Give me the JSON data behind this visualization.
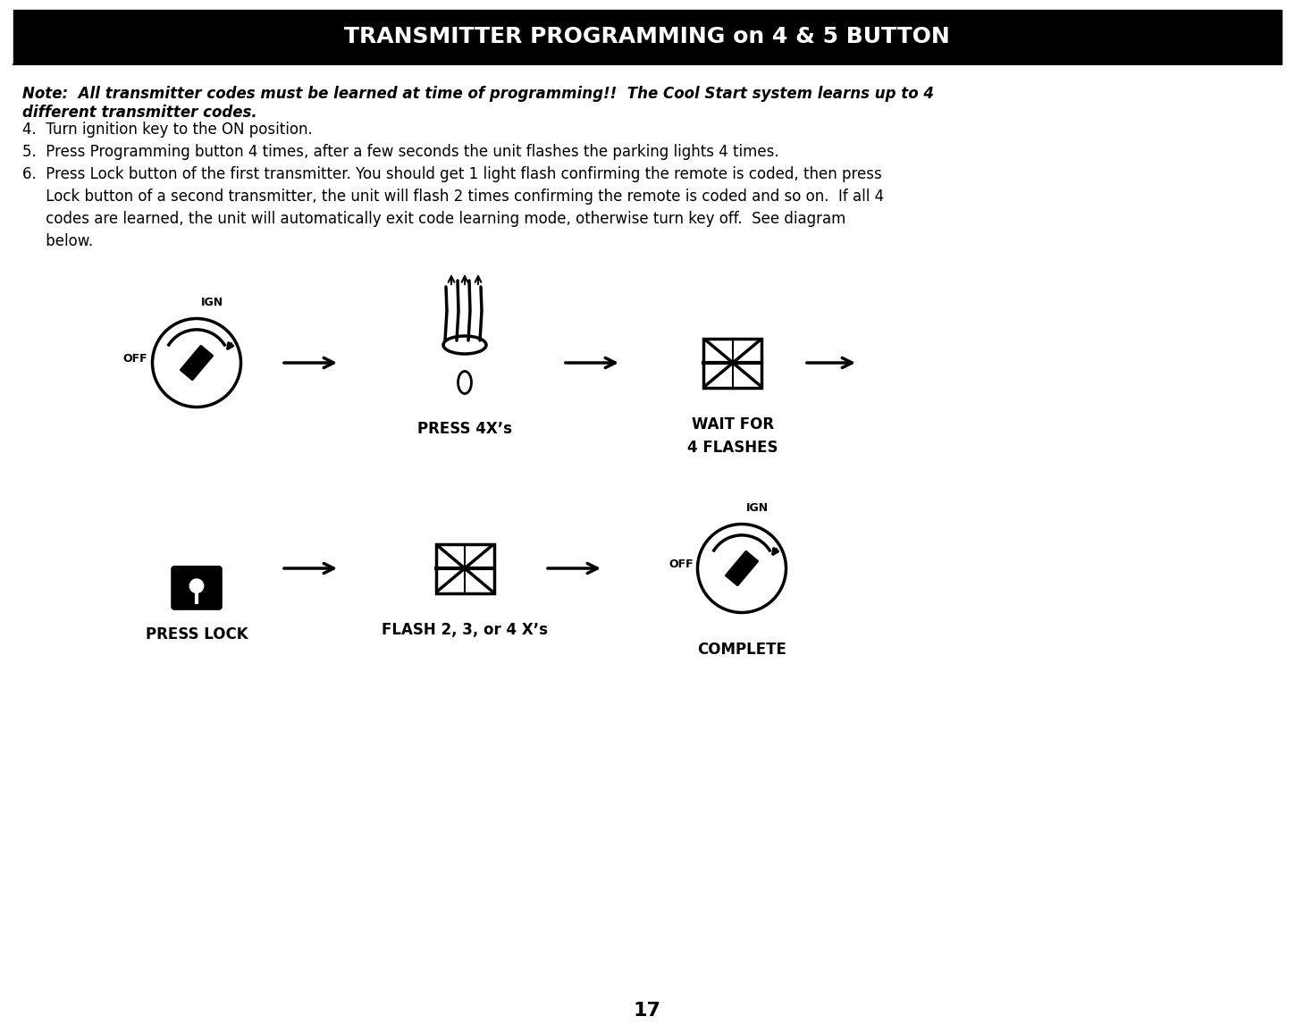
{
  "title": "TRANSMITTER PROGRAMMING on 4 & 5 BUTTON",
  "title_bg": "#000000",
  "title_color": "#ffffff",
  "page_number": "17",
  "note_text": "Note:  All transmitter codes must be learned at time of programming!!  The Cool Start system learns up to 4\ndifferent transmitter codes.",
  "steps": [
    "4.  Turn ignition key to the ON position.",
    "5.  Press Programming button 4 times, after a few seconds the unit flashes the parking lights 4 times.",
    "6.  Press Lock button of the first transmitter. You should get 1 light flash confirming the remote is coded, then press\n     Lock button of a second transmitter, the unit will flash 2 times confirming the remote is coded and so on.  If all 4\n     codes are learned, the unit will automatically exit code learning mode, otherwise turn key off.  See diagram\n     below."
  ],
  "row1_labels": [
    "PRESS 4X’s",
    "WAIT FOR\n4 FLASHES"
  ],
  "row2_labels": [
    "PRESS LOCK",
    "FLASH 2, 3, or 4 X’s",
    "COMPLETE"
  ],
  "bg_color": "#ffffff",
  "text_color": "#000000"
}
